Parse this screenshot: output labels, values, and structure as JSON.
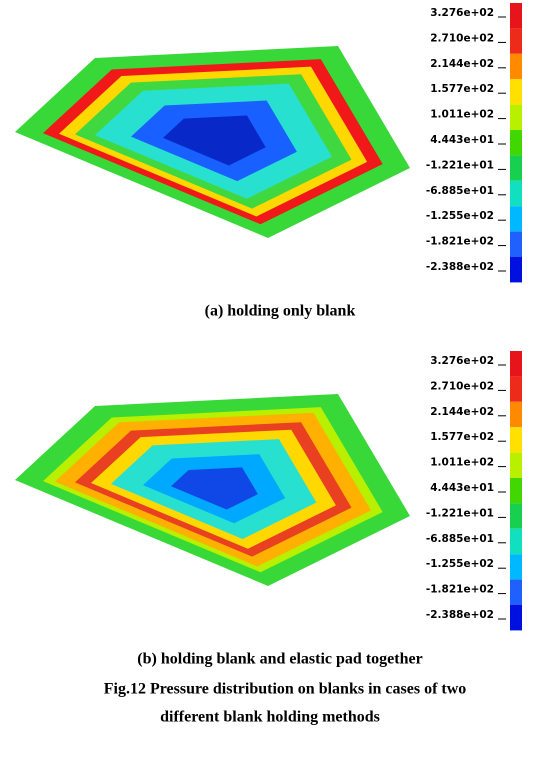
{
  "panels": [
    {
      "legend": [
        "3.276e+02",
        "2.710e+02",
        "2.144e+02",
        "1.577e+02",
        "1.011e+02",
        "4.443e+01",
        "-1.221e+01",
        "-6.885e+01",
        "-1.255e+02",
        "-1.821e+02",
        "-2.388e+02"
      ],
      "caption": "(a) holding only blank"
    },
    {
      "legend": [
        "3.276e+02",
        "2.710e+02",
        "2.144e+02",
        "1.577e+02",
        "1.011e+02",
        "4.443e+01",
        "-1.221e+01",
        "-6.885e+01",
        "-1.255e+02",
        "-1.821e+02",
        "-2.388e+02"
      ],
      "caption": "(b) holding blank and elastic pad together"
    }
  ],
  "figure_caption": {
    "line1": "Fig.12 Pressure distribution on blanks in cases of two",
    "line2": "different blank holding methods"
  }
}
